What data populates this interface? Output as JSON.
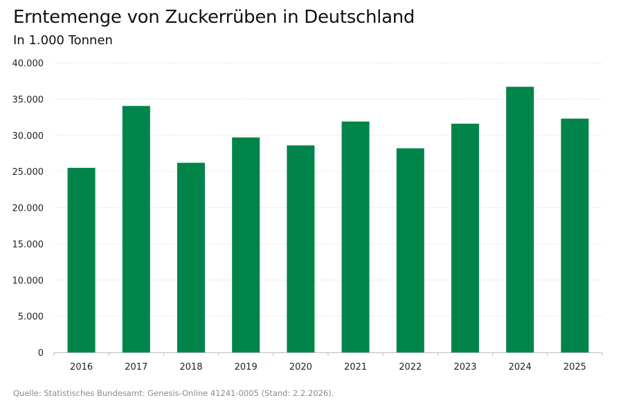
{
  "chart_data": {
    "type": "bar",
    "title": "Erntemenge von Zuckerrüben in Deutschland",
    "subtitle": "In 1.000 Tonnen",
    "categories": [
      "2016",
      "2017",
      "2018",
      "2019",
      "2020",
      "2021",
      "2022",
      "2023",
      "2024",
      "2025"
    ],
    "values": [
      25500,
      34050,
      26200,
      29700,
      28600,
      31900,
      28200,
      31600,
      36700,
      32300
    ],
    "ylim": [
      0,
      40000
    ],
    "yticks": [
      0,
      5000,
      10000,
      15000,
      20000,
      25000,
      30000,
      35000,
      40000
    ],
    "ytick_labels": [
      "0",
      "5.000",
      "10.000",
      "15.000",
      "20.000",
      "25.000",
      "30.000",
      "35.000",
      "40.000"
    ],
    "grid": true,
    "bar_color": "#00844a",
    "source": "Quelle: Statistisches Bundesamt: Genesis-Online 41241-0005 (Stand: 2.2.2026)."
  }
}
